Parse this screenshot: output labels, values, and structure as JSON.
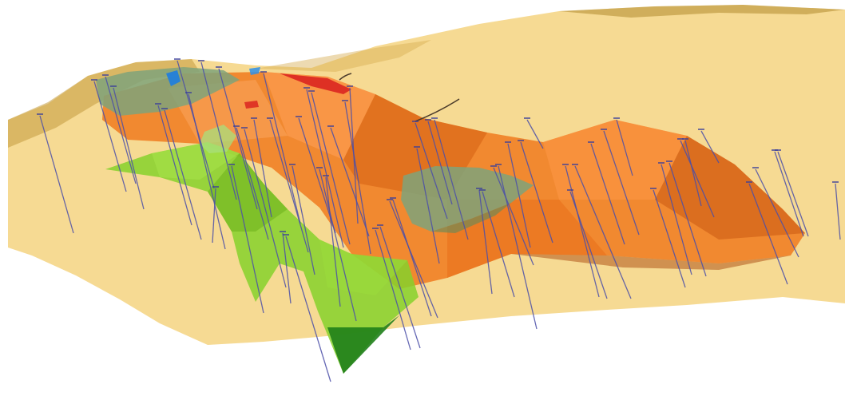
{
  "scene": {
    "background": "#ffffff",
    "layers": {
      "terrain_surface": {
        "color": "#f3cf74",
        "opacity": 0.78
      },
      "terrain_edge": {
        "color": "#c29b3e"
      },
      "orange_body": {
        "color": "#f07a1e",
        "opacity": 0.85
      },
      "light_green_body": {
        "color": "#86d12c",
        "opacity": 0.85
      },
      "dark_green_body": {
        "color": "#1f7f1a"
      },
      "teal_lenses": {
        "color": "#7fa37a",
        "opacity": 0.85
      },
      "blue_patch": {
        "color": "#1d7de0"
      },
      "red_patch": {
        "color": "#d91e1e"
      },
      "drillholes": {
        "color": "#4b4fa8",
        "count": 60
      }
    }
  }
}
